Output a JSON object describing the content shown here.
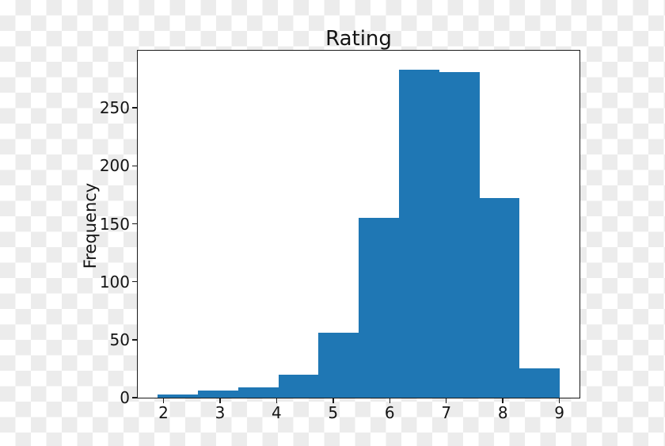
{
  "figure": {
    "title": "Rating",
    "ylabel": "Frequency"
  },
  "chart_data": {
    "type": "bar",
    "subtype": "histogram",
    "title": "Rating",
    "xlabel": "",
    "ylabel": "Frequency",
    "bin_edges": [
      1.9,
      2.61,
      3.32,
      4.03,
      4.74,
      5.45,
      6.16,
      6.87,
      7.58,
      8.29,
      9.0
    ],
    "values": [
      3,
      6,
      9,
      20,
      56,
      155,
      283,
      281,
      172,
      25
    ],
    "x_tick_labels": [
      "2",
      "3",
      "4",
      "5",
      "6",
      "7",
      "8",
      "9"
    ],
    "y_tick_labels": [
      "0",
      "50",
      "100",
      "150",
      "200",
      "250"
    ],
    "xlim": [
      1.545,
      9.355
    ],
    "ylim": [
      0,
      299.25
    ],
    "grid": false,
    "legend": null,
    "bar_color": "#1f77b4",
    "background": "transparent-checkerboard"
  },
  "colors": {
    "bar": "#1f77b4",
    "checker_light": "#ffffff",
    "checker_dark": "#ececec",
    "spine": "#1a1a1a",
    "text": "#141414"
  }
}
